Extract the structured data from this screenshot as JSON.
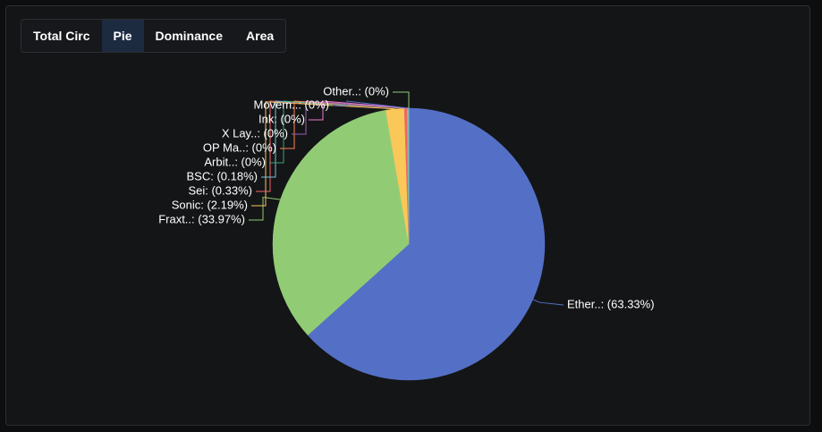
{
  "tabs": [
    "Total Circ",
    "Pie",
    "Dominance",
    "Area"
  ],
  "active_tab": 1,
  "chart_data": {
    "type": "pie",
    "values": [
      63.33,
      33.97,
      2.19,
      0.33,
      0.18,
      0,
      0,
      0,
      0,
      0,
      0
    ],
    "value_labels": [
      "Ether..: (63.33%)",
      "Fraxt..: (33.97%)",
      "Sonic: (2.19%)",
      "Sei: (0.33%)",
      "BSC: (0.18%)",
      "Arbit..: (0%)",
      "OP Ma..: (0%)",
      "X Lay..: (0%)",
      "Ink: (0%)",
      "Movem..: (0%)",
      "Other..: (0%)"
    ],
    "colors": [
      "#5470c6",
      "#91cc75",
      "#fac858",
      "#ee6666",
      "#73c0de",
      "#3ba272",
      "#fc8452",
      "#9a60b4",
      "#ea7ccc",
      "#5470c6",
      "#91cc75"
    ]
  }
}
